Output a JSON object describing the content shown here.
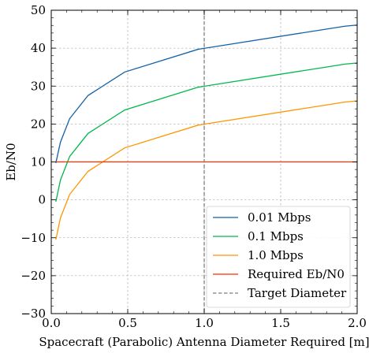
{
  "chart_data": {
    "type": "line",
    "title": "",
    "xlabel": "Spacecraft (Parabolic) Antenna Diameter Required [m]",
    "ylabel": "Eb/N0",
    "xlim": [
      0.0,
      2.0
    ],
    "ylim": [
      -30,
      50
    ],
    "xticks": [
      0.0,
      0.5,
      1.0,
      1.5,
      2.0
    ],
    "xtick_labels": [
      "0.0",
      "0.5",
      "1.0",
      "1.5",
      "2.0"
    ],
    "yticks": [
      -30,
      -20,
      -10,
      0,
      10,
      20,
      30,
      40,
      50
    ],
    "ytick_labels": [
      "−30",
      "−20",
      "−10",
      "0",
      "10",
      "20",
      "30",
      "40",
      "50"
    ],
    "grid": true,
    "legend_position": "bottom-right",
    "series": [
      {
        "name": "0.01 Mbps",
        "color": "#1261a8",
        "style": "solid",
        "x": [
          0.03,
          0.06,
          0.12,
          0.24,
          0.48,
          0.96,
          1.92,
          2.0
        ],
        "y": [
          9.7,
          15.2,
          21.4,
          27.5,
          33.7,
          39.7,
          45.8,
          46.1
        ]
      },
      {
        "name": "0.1 Mbps",
        "color": "#00b84a",
        "style": "solid",
        "x": [
          0.03,
          0.06,
          0.12,
          0.24,
          0.48,
          0.96,
          1.92,
          2.0
        ],
        "y": [
          -0.5,
          5.2,
          11.4,
          17.5,
          23.7,
          29.7,
          35.8,
          36.1
        ]
      },
      {
        "name": "1.0 Mbps",
        "color": "#ff9500",
        "style": "solid",
        "x": [
          0.03,
          0.06,
          0.12,
          0.24,
          0.48,
          0.96,
          1.92,
          2.0
        ],
        "y": [
          -10.5,
          -4.8,
          1.4,
          7.5,
          13.7,
          19.7,
          25.8,
          26.1
        ]
      },
      {
        "name": "Required Eb/N0",
        "color": "#ff2c00",
        "style": "solid",
        "x": [
          0.03,
          2.0
        ],
        "y": [
          10,
          10
        ]
      }
    ],
    "vlines": [
      {
        "name": "Target Diameter",
        "x": 1.0,
        "color": "#7f7f7f",
        "style": "dashed"
      }
    ],
    "legend": [
      "0.01 Mbps",
      "0.1 Mbps",
      "1.0 Mbps",
      "Required Eb/N0",
      "Target Diameter"
    ]
  }
}
